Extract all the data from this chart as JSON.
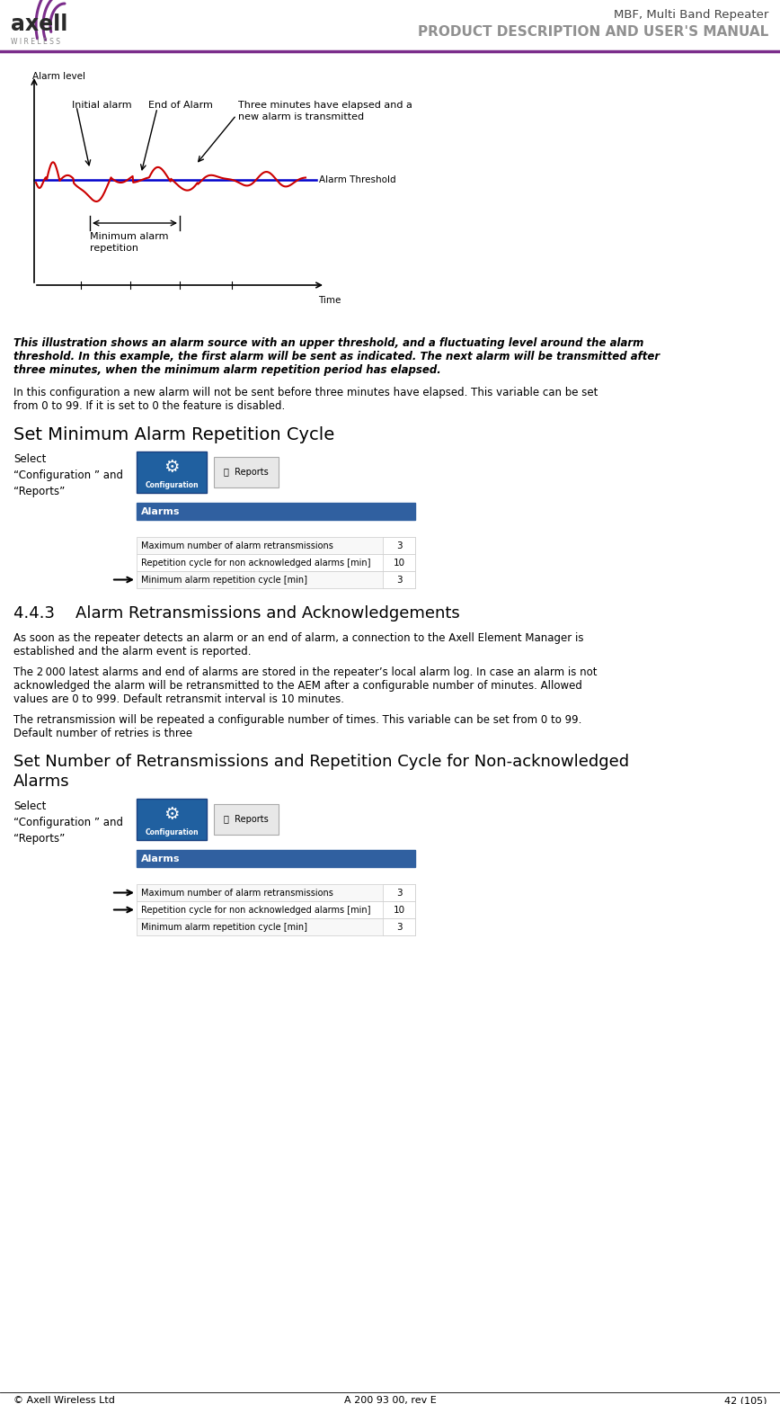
{
  "header_title": "MBF, Multi Band Repeater",
  "header_subtitle": "PRODUCT DESCRIPTION AND USER'S MANUAL",
  "header_line_color": "#7B2D8B",
  "bg_color": "#ffffff",
  "text_color": "#000000",
  "italic_lines": [
    "This illustration shows an alarm source with an upper threshold, and a fluctuating level around the alarm",
    "threshold. In this example, the first alarm will be sent as indicated. The next alarm will be transmitted after",
    "three minutes, when the minimum alarm repetition period has elapsed."
  ],
  "para2_lines": [
    "In this configuration a new alarm will not be sent before three minutes have elapsed. This variable can be set",
    "from 0 to 99. If it is set to 0 the feature is disabled."
  ],
  "heading1": "Set Minimum Alarm Repetition Cycle",
  "select_text": "Select\n“Configuration ” and\n“Reports”",
  "table_header": "Alarms",
  "table_rows": [
    [
      "Maximum number of alarm retransmissions",
      "3"
    ],
    [
      "Repetition cycle for non acknowledged alarms [min]",
      "10"
    ],
    [
      "Minimum alarm repetition cycle [min]",
      "3"
    ]
  ],
  "section_heading": "4.4.3    Alarm Retransmissions and Acknowledgements",
  "para3_lines": [
    "As soon as the repeater detects an alarm or an end of alarm, a connection to the Axell Element Manager is",
    "established and the alarm event is reported."
  ],
  "para4_lines": [
    "The 2 000 latest alarms and end of alarms are stored in the repeater’s local alarm log. In case an alarm is not",
    "acknowledged the alarm will be retransmitted to the AEM after a configurable number of minutes. Allowed",
    "values are 0 to 999. Default retransmit interval is 10 minutes."
  ],
  "para5_lines": [
    "The retransmission will be repeated a configurable number of times. This variable can be set from 0 to 99.",
    "Default number of retries is three"
  ],
  "heading2_line1": "Set Number of Retransmissions and Repetition Cycle for Non-acknowledged",
  "heading2_line2": "Alarms",
  "footer_left": "© Axell Wireless Ltd",
  "footer_center": "A 200 93 00, rev E",
  "footer_right": "42 (105)",
  "alarm_threshold_color": "#0000CC",
  "signal_color": "#CC0000",
  "purple_color": "#7B2D8B",
  "blue_btn_color": "#2060A0",
  "table_header_color": "#3060A0"
}
